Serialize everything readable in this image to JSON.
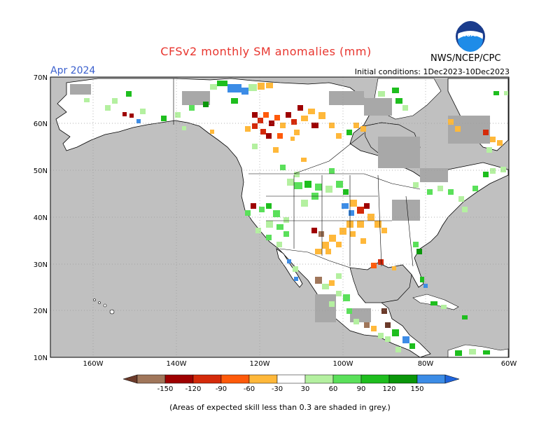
{
  "title": "CFSv2 monthly SM anomalies (mm)",
  "valid_month": "Apr 2024",
  "initial_conditions": "Initial conditions: 1Dec2023-10Dec2023",
  "agency": "NWS/NCEP/CPC",
  "logo_text": "NOAA",
  "footnote": "(Areas of expected skill less than 0.3 are shaded in grey.)",
  "lat_labels": [
    "70N",
    "60N",
    "50N",
    "40N",
    "30N",
    "20N",
    "10N"
  ],
  "lon_labels": [
    "160W",
    "140W",
    "120W",
    "100W",
    "80W",
    "60W"
  ],
  "colorbar": {
    "labels": [
      "-150",
      "-120",
      "-90",
      "-60",
      "-30",
      "30",
      "60",
      "90",
      "120",
      "150"
    ],
    "colors": [
      "#6b3a2a",
      "#a0765a",
      "#9e0000",
      "#d42a0a",
      "#ff5a0a",
      "#ffb83a",
      "#ffffff",
      "#b4f0a0",
      "#5ae05a",
      "#1ebe1e",
      "#0a960a",
      "#3c8ce6",
      "#1e64dc"
    ]
  },
  "colors": {
    "ocean_grey": "#c0c0c0",
    "skill_grey": "#a8a8a8",
    "title_red": "#e8352e",
    "month_blue": "#3a5fcd"
  }
}
